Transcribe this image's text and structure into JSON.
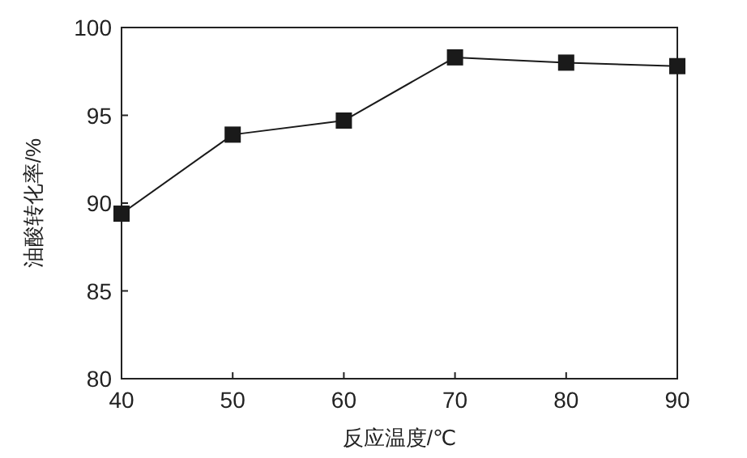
{
  "chart_data": {
    "type": "line",
    "xlabel": "反应温度/℃",
    "ylabel": "油酸转化率/%",
    "x": [
      40,
      50,
      60,
      70,
      80,
      90
    ],
    "series": [
      {
        "color": "#1a1a1a",
        "values": [
          89.4,
          93.9,
          94.7,
          98.3,
          98.0,
          97.8
        ]
      }
    ],
    "xlim": [
      40,
      90
    ],
    "xticks": [
      40,
      50,
      60,
      70,
      80,
      90
    ],
    "ylim": [
      80,
      100
    ],
    "yticks": [
      80,
      85,
      90,
      95,
      100
    ],
    "marker": "square",
    "line_style": "solid",
    "grid": false
  }
}
